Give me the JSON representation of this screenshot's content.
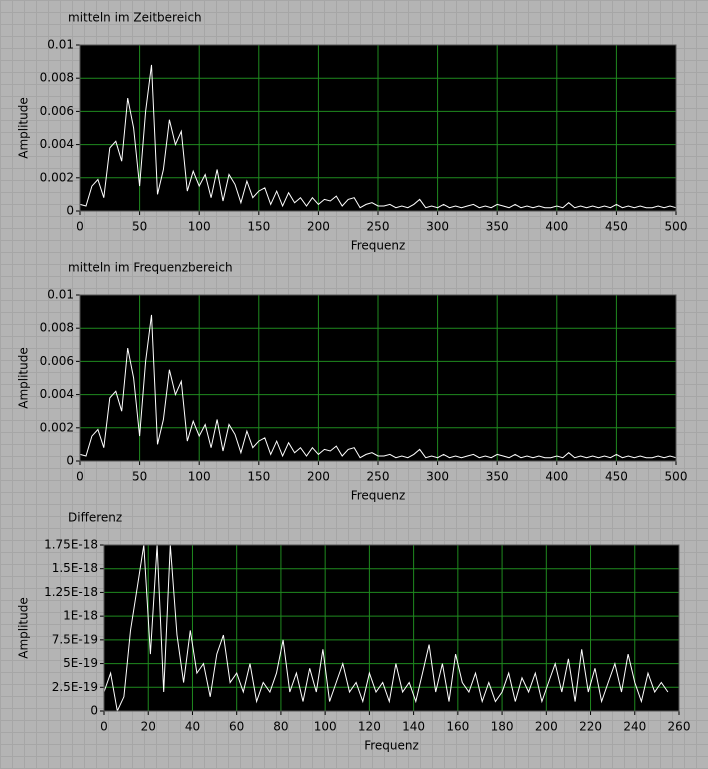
{
  "chart_data": [
    {
      "type": "line",
      "title": "mitteln im Zeitbereich",
      "xlabel": "Frequenz",
      "ylabel": "Amplitude",
      "color": "#ffffff",
      "grid": true,
      "x": [
        0,
        5,
        10,
        15,
        20,
        25,
        30,
        35,
        40,
        45,
        50,
        55,
        60,
        65,
        70,
        75,
        80,
        85,
        90,
        95,
        100,
        105,
        110,
        115,
        120,
        125,
        130,
        135,
        140,
        145,
        150,
        155,
        160,
        165,
        170,
        175,
        180,
        185,
        190,
        195,
        200,
        205,
        210,
        215,
        220,
        225,
        230,
        235,
        240,
        245,
        250,
        255,
        260,
        265,
        270,
        275,
        280,
        285,
        290,
        295,
        300,
        305,
        310,
        315,
        320,
        325,
        330,
        335,
        340,
        345,
        350,
        355,
        360,
        365,
        370,
        375,
        380,
        385,
        390,
        395,
        400,
        405,
        410,
        415,
        420,
        425,
        430,
        435,
        440,
        445,
        450,
        455,
        460,
        465,
        470,
        475,
        480,
        485,
        490,
        495,
        500
      ],
      "values": [
        0.0004,
        0.0003,
        0.0015,
        0.0019,
        0.0008,
        0.0038,
        0.0042,
        0.003,
        0.0068,
        0.005,
        0.0015,
        0.006,
        0.0088,
        0.001,
        0.0025,
        0.0055,
        0.004,
        0.0048,
        0.0012,
        0.0024,
        0.0015,
        0.0022,
        0.0008,
        0.0025,
        0.0006,
        0.0022,
        0.0016,
        0.0005,
        0.0018,
        0.0008,
        0.0012,
        0.0014,
        0.0004,
        0.0012,
        0.0003,
        0.0011,
        0.0005,
        0.0008,
        0.0003,
        0.0008,
        0.0004,
        0.0007,
        0.0006,
        0.0009,
        0.0003,
        0.0007,
        0.0008,
        0.0002,
        0.0004,
        0.0005,
        0.0003,
        0.0003,
        0.0004,
        0.0002,
        0.0003,
        0.0002,
        0.0004,
        0.0007,
        0.0002,
        0.0003,
        0.0002,
        0.0004,
        0.0002,
        0.0003,
        0.0002,
        0.0003,
        0.0004,
        0.0002,
        0.0003,
        0.0002,
        0.0004,
        0.0003,
        0.0002,
        0.0004,
        0.0002,
        0.0003,
        0.0002,
        0.0003,
        0.0002,
        0.0002,
        0.0003,
        0.0002,
        0.0005,
        0.0002,
        0.0003,
        0.0002,
        0.0003,
        0.0002,
        0.0003,
        0.0002,
        0.0004,
        0.0002,
        0.0003,
        0.0002,
        0.0003,
        0.0002,
        0.0002,
        0.0003,
        0.0002,
        0.0003,
        0.0002
      ],
      "xlim": [
        0,
        500
      ],
      "ylim": [
        0,
        0.01
      ],
      "xticks": [
        0,
        50,
        100,
        150,
        200,
        250,
        300,
        350,
        400,
        450,
        500
      ],
      "yticks": [
        0,
        0.002,
        0.004,
        0.006,
        0.008,
        0.01
      ]
    },
    {
      "type": "line",
      "title": "mitteln im Frequenzbereich",
      "xlabel": "Frequenz",
      "ylabel": "Amplitude",
      "color": "#ffffff",
      "grid": true,
      "x": [
        0,
        5,
        10,
        15,
        20,
        25,
        30,
        35,
        40,
        45,
        50,
        55,
        60,
        65,
        70,
        75,
        80,
        85,
        90,
        95,
        100,
        105,
        110,
        115,
        120,
        125,
        130,
        135,
        140,
        145,
        150,
        155,
        160,
        165,
        170,
        175,
        180,
        185,
        190,
        195,
        200,
        205,
        210,
        215,
        220,
        225,
        230,
        235,
        240,
        245,
        250,
        255,
        260,
        265,
        270,
        275,
        280,
        285,
        290,
        295,
        300,
        305,
        310,
        315,
        320,
        325,
        330,
        335,
        340,
        345,
        350,
        355,
        360,
        365,
        370,
        375,
        380,
        385,
        390,
        395,
        400,
        405,
        410,
        415,
        420,
        425,
        430,
        435,
        440,
        445,
        450,
        455,
        460,
        465,
        470,
        475,
        480,
        485,
        490,
        495,
        500
      ],
      "values": [
        0.0004,
        0.0003,
        0.0015,
        0.0019,
        0.0008,
        0.0038,
        0.0042,
        0.003,
        0.0068,
        0.005,
        0.0015,
        0.006,
        0.0088,
        0.001,
        0.0025,
        0.0055,
        0.004,
        0.0048,
        0.0012,
        0.0024,
        0.0015,
        0.0022,
        0.0008,
        0.0025,
        0.0006,
        0.0022,
        0.0016,
        0.0005,
        0.0018,
        0.0008,
        0.0012,
        0.0014,
        0.0004,
        0.0012,
        0.0003,
        0.0011,
        0.0005,
        0.0008,
        0.0003,
        0.0008,
        0.0004,
        0.0007,
        0.0006,
        0.0009,
        0.0003,
        0.0007,
        0.0008,
        0.0002,
        0.0004,
        0.0005,
        0.0003,
        0.0003,
        0.0004,
        0.0002,
        0.0003,
        0.0002,
        0.0004,
        0.0007,
        0.0002,
        0.0003,
        0.0002,
        0.0004,
        0.0002,
        0.0003,
        0.0002,
        0.0003,
        0.0004,
        0.0002,
        0.0003,
        0.0002,
        0.0004,
        0.0003,
        0.0002,
        0.0004,
        0.0002,
        0.0003,
        0.0002,
        0.0003,
        0.0002,
        0.0002,
        0.0003,
        0.0002,
        0.0005,
        0.0002,
        0.0003,
        0.0002,
        0.0003,
        0.0002,
        0.0003,
        0.0002,
        0.0004,
        0.0002,
        0.0003,
        0.0002,
        0.0003,
        0.0002,
        0.0002,
        0.0003,
        0.0002,
        0.0003,
        0.0002
      ],
      "xlim": [
        0,
        500
      ],
      "ylim": [
        0,
        0.01
      ],
      "xticks": [
        0,
        50,
        100,
        150,
        200,
        250,
        300,
        350,
        400,
        450,
        500
      ],
      "yticks": [
        0,
        0.002,
        0.004,
        0.006,
        0.008,
        0.01
      ]
    },
    {
      "type": "line",
      "title": "Differenz",
      "xlabel": "Frequenz",
      "ylabel": "Amplitude",
      "color": "#ffffff",
      "grid": true,
      "x": [
        0,
        3,
        6,
        9,
        12,
        15,
        18,
        21,
        24,
        27,
        30,
        33,
        36,
        39,
        42,
        45,
        48,
        51,
        54,
        57,
        60,
        63,
        66,
        69,
        72,
        75,
        78,
        81,
        84,
        87,
        90,
        93,
        96,
        99,
        102,
        105,
        108,
        111,
        114,
        117,
        120,
        123,
        126,
        129,
        132,
        135,
        138,
        141,
        144,
        147,
        150,
        153,
        156,
        159,
        162,
        165,
        168,
        171,
        174,
        177,
        180,
        183,
        186,
        189,
        192,
        195,
        198,
        201,
        204,
        207,
        210,
        213,
        216,
        219,
        222,
        225,
        228,
        231,
        234,
        237,
        240,
        243,
        246,
        249,
        252,
        255
      ],
      "values": [
        2e-19,
        4e-19,
        0,
        1.5e-19,
        8.5e-19,
        1.3e-18,
        1.75e-18,
        6e-19,
        1.75e-18,
        2e-19,
        1.75e-18,
        8e-19,
        3e-19,
        8.5e-19,
        4e-19,
        5e-19,
        1.5e-19,
        6e-19,
        8e-19,
        3e-19,
        4e-19,
        2e-19,
        5e-19,
        1e-19,
        3e-19,
        2e-19,
        4e-19,
        7.5e-19,
        2e-19,
        4e-19,
        1e-19,
        4.5e-19,
        2e-19,
        6.5e-19,
        1e-19,
        3e-19,
        5e-19,
        2e-19,
        3e-19,
        1e-19,
        4e-19,
        2e-19,
        3e-19,
        1e-19,
        5e-19,
        2e-19,
        3e-19,
        1e-19,
        4e-19,
        7e-19,
        2e-19,
        5e-19,
        1e-19,
        6e-19,
        3e-19,
        2e-19,
        4e-19,
        1e-19,
        3e-19,
        1e-19,
        2e-19,
        4e-19,
        1e-19,
        3.5e-19,
        2e-19,
        4e-19,
        1e-19,
        3e-19,
        5e-19,
        2e-19,
        5.5e-19,
        1e-19,
        6.5e-19,
        2e-19,
        4.5e-19,
        1e-19,
        3e-19,
        5e-19,
        2e-19,
        6e-19,
        3e-19,
        1e-19,
        4e-19,
        2e-19,
        3e-19,
        2e-19
      ],
      "xlim": [
        0,
        260
      ],
      "ylim": [
        0,
        1.75e-18
      ],
      "xticks": [
        0,
        20,
        40,
        60,
        80,
        100,
        120,
        140,
        160,
        180,
        200,
        220,
        240,
        260
      ],
      "yticks": [
        0,
        {
          "value": 2.5e-19,
          "label": "2.5E-19"
        },
        {
          "value": 5e-19,
          "label": "5E-19"
        },
        {
          "value": 7.5e-19,
          "label": "7.5E-19"
        },
        {
          "value": 1e-18,
          "label": "1E-18"
        },
        {
          "value": 1.25e-18,
          "label": "1.25E-18"
        },
        {
          "value": 1.5e-18,
          "label": "1.5E-18"
        },
        {
          "value": 1.75e-18,
          "label": "1.75E-18"
        }
      ]
    }
  ]
}
